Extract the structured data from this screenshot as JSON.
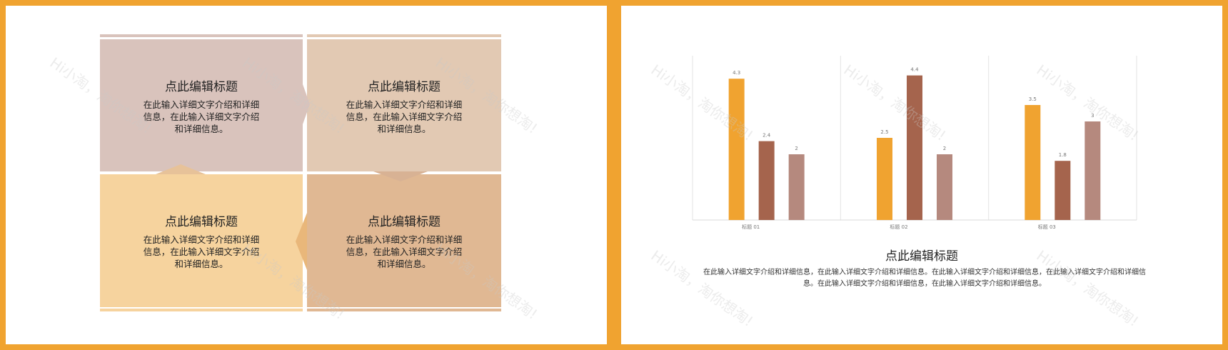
{
  "colors": {
    "frame": "#F0A330",
    "series": [
      "#F0A330",
      "#A5644D",
      "#B5897E"
    ]
  },
  "slide1": {
    "quads": [
      {
        "title": "点此编辑标题",
        "text": "在此输入详细文字介绍和详细信息，在此输入详细文字介绍和详细信息。",
        "color": "#D9C3BC"
      },
      {
        "title": "点此编辑标题",
        "text": "在此输入详细文字介绍和详细信息，在此输入详细文字介绍和详细信息。",
        "color": "#E2C9B3"
      },
      {
        "title": "点此编辑标题",
        "text": "在此输入详细文字介绍和详细信息，在此输入详细文字介绍和详细信息。",
        "color": "#F6D39E"
      },
      {
        "title": "点此编辑标题",
        "text": "在此输入详细文字介绍和详细信息，在此输入详细文字介绍和详细信息。",
        "color": "#E0B893"
      }
    ]
  },
  "watermark": "Hi小淘，淘你想淘!",
  "slide2": {
    "title": "点此编辑标题",
    "description": "在此输入详细文字介绍和详细信息，在此输入详细文字介绍和详细信息。在此输入详细文字介绍和详细信息，在此输入详细文字介绍和详细信息。在此输入详细文字介绍和详细信息，在此输入详细文字介绍和详细信息。"
  },
  "chart_data": {
    "type": "bar",
    "categories": [
      "标题 01",
      "标题 02",
      "标题 03"
    ],
    "series": [
      {
        "values": [
          4.3,
          2.5,
          3.5
        ]
      },
      {
        "values": [
          2.4,
          4.4,
          1.8
        ]
      },
      {
        "values": [
          2,
          2,
          3
        ]
      }
    ],
    "ylim": [
      0,
      5
    ],
    "grid": "vertical separators between categories",
    "data_labels": true
  }
}
